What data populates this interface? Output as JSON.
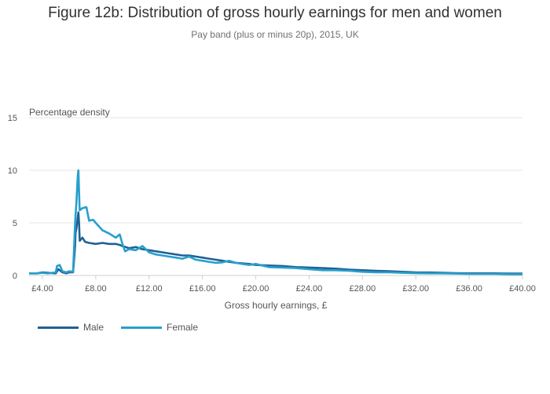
{
  "title": "Figure 12b: Distribution of gross hourly earnings for men and women",
  "subtitle": "Pay band (plus or minus 20p), 2015, UK",
  "chart_data": {
    "type": "line",
    "ylabel": "Percentage density",
    "xlabel": "Gross hourly earnings, £",
    "xlim": [
      3.0,
      40.0
    ],
    "ylim": [
      0,
      15
    ],
    "x_ticks": [
      4,
      8,
      12,
      16,
      20,
      24,
      28,
      32,
      36,
      40
    ],
    "x_tick_labels": [
      "£4.00",
      "£8.00",
      "£12.00",
      "£16.00",
      "£20.00",
      "£24.00",
      "£28.00",
      "£32.00",
      "£36.00",
      "£40.00"
    ],
    "y_ticks": [
      0,
      5,
      10,
      15
    ],
    "y_tick_labels": [
      "0",
      "5",
      "10",
      "15"
    ],
    "grid": true,
    "legend_position": "bottom-left",
    "series": [
      {
        "name": "Male",
        "color": "#206095",
        "x": [
          3.0,
          3.6,
          4.0,
          4.4,
          5.0,
          5.2,
          5.5,
          5.8,
          6.0,
          6.3,
          6.45,
          6.48,
          6.55,
          6.65,
          6.7,
          6.75,
          6.8,
          7.0,
          7.2,
          7.5,
          8.0,
          8.5,
          9.0,
          9.5,
          9.8,
          10.0,
          10.5,
          11.0,
          11.5,
          12.0,
          12.5,
          13.0,
          13.5,
          14.0,
          14.5,
          15.0,
          15.5,
          16.0,
          16.5,
          17.0,
          17.5,
          18.0,
          18.5,
          19.0,
          19.5,
          20.0,
          21.0,
          22.0,
          23.0,
          24.0,
          25.0,
          26.0,
          27.0,
          28.0,
          29.0,
          30.0,
          31.0,
          32.0,
          33.0,
          34.0,
          35.0,
          36.0,
          37.0,
          38.0,
          39.0,
          40.0
        ],
        "y": [
          0.2,
          0.2,
          0.3,
          0.25,
          0.2,
          0.6,
          0.3,
          0.2,
          0.3,
          0.3,
          2.8,
          4.0,
          4.5,
          5.5,
          6.0,
          5.0,
          3.3,
          3.6,
          3.2,
          3.1,
          3.0,
          3.1,
          3.0,
          3.0,
          2.9,
          2.8,
          2.6,
          2.7,
          2.5,
          2.4,
          2.3,
          2.2,
          2.1,
          2.0,
          1.9,
          1.9,
          1.8,
          1.7,
          1.6,
          1.5,
          1.4,
          1.3,
          1.2,
          1.15,
          1.1,
          1.0,
          0.95,
          0.9,
          0.8,
          0.75,
          0.7,
          0.65,
          0.55,
          0.5,
          0.45,
          0.4,
          0.35,
          0.3,
          0.28,
          0.25,
          0.22,
          0.2,
          0.2,
          0.2,
          0.18,
          0.18
        ]
      },
      {
        "name": "Female",
        "color": "#27a0cc",
        "x": [
          3.0,
          3.6,
          4.0,
          4.4,
          5.0,
          5.1,
          5.3,
          5.5,
          5.8,
          6.0,
          6.3,
          6.45,
          6.5,
          6.55,
          6.65,
          6.7,
          6.75,
          6.78,
          6.8,
          7.0,
          7.3,
          7.5,
          7.8,
          8.0,
          8.5,
          9.0,
          9.5,
          9.8,
          10.0,
          10.2,
          10.5,
          11.0,
          11.5,
          12.0,
          12.5,
          13.0,
          13.5,
          14.0,
          14.5,
          15.0,
          15.5,
          16.0,
          16.5,
          17.0,
          17.5,
          18.0,
          18.5,
          19.0,
          19.5,
          20.0,
          21.0,
          22.0,
          23.0,
          24.0,
          25.0,
          26.0,
          27.0,
          28.0,
          29.0,
          30.0,
          31.0,
          32.0,
          33.0,
          34.0,
          35.0,
          36.0,
          37.0,
          38.0,
          39.0,
          40.0
        ],
        "y": [
          0.2,
          0.2,
          0.25,
          0.2,
          0.3,
          0.9,
          1.0,
          0.4,
          0.3,
          0.4,
          0.35,
          5.0,
          6.0,
          7.0,
          9.5,
          10.0,
          8.0,
          6.6,
          6.2,
          6.4,
          6.5,
          5.2,
          5.3,
          5.0,
          4.3,
          4.0,
          3.6,
          3.9,
          3.0,
          2.3,
          2.5,
          2.4,
          2.8,
          2.2,
          2.0,
          1.9,
          1.8,
          1.7,
          1.6,
          1.8,
          1.5,
          1.4,
          1.3,
          1.2,
          1.25,
          1.4,
          1.2,
          1.1,
          1.0,
          1.1,
          0.8,
          0.75,
          0.7,
          0.6,
          0.5,
          0.5,
          0.45,
          0.35,
          0.3,
          0.3,
          0.25,
          0.22,
          0.2,
          0.2,
          0.18,
          0.15,
          0.15,
          0.15,
          0.12,
          0.12
        ]
      }
    ]
  }
}
